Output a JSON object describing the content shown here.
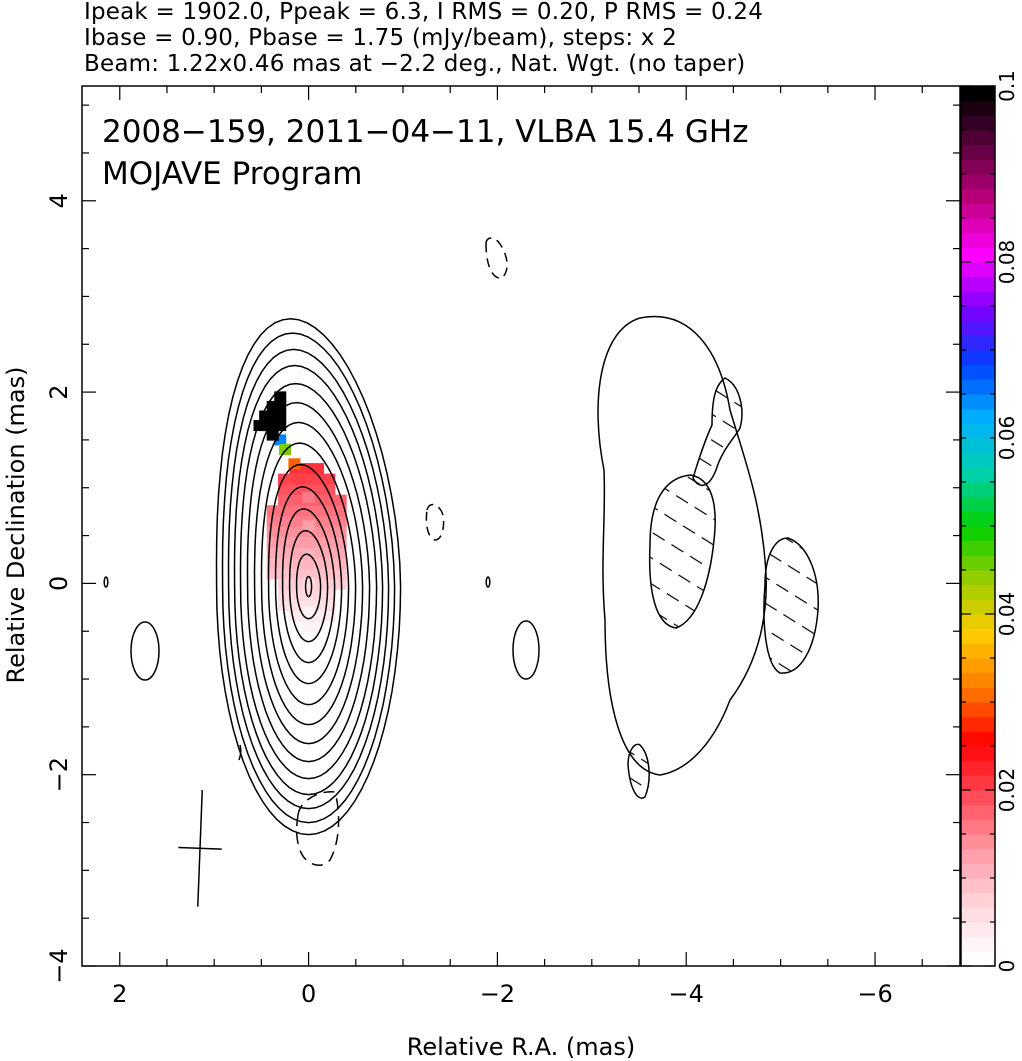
{
  "header": {
    "line1": "Ipeak = 1902.0, Ppeak = 6.3, I RMS = 0.20, P RMS = 0.24",
    "line2": "Ibase = 0.90, Pbase = 1.75 (mJy/beam), steps: x 2",
    "line3": "Beam: 1.22x0.46 mas at −2.2 deg., Nat. Wgt. (no taper)"
  },
  "chart_data": {
    "type": "contour",
    "title": "2008−159, 2011−04−11, VLBA 15.4 GHz",
    "subtitle": "MOJAVE Program",
    "xlabel": "Relative R.A. (mas)",
    "ylabel": "Relative Declination (mas)",
    "xlim": [
      2.4,
      -6.9
    ],
    "ylim": [
      -4,
      5.2
    ],
    "x_ticks": [
      2,
      0,
      -2,
      -4,
      -6
    ],
    "x_tick_labels": [
      "2",
      "0",
      "−2",
      "−4",
      "−6"
    ],
    "y_ticks": [
      4,
      2,
      0,
      -2,
      -4
    ],
    "y_tick_labels": [
      "4",
      "2",
      "0",
      "−2",
      "−4"
    ],
    "colorbar": {
      "min": 0,
      "max": 0.1,
      "ticks": [
        0,
        0.02,
        0.04,
        0.06,
        0.08,
        0.1
      ],
      "tick_labels": [
        "0",
        "0.02",
        "0.04",
        "0.06",
        "0.08",
        "0.1"
      ],
      "colors": [
        "#ffffff",
        "#ffd6dc",
        "#ff9aa5",
        "#ff4d5a",
        "#ff0000",
        "#ff7a00",
        "#ffcc00",
        "#9acd00",
        "#00d000",
        "#00d0b0",
        "#00b0ff",
        "#0040ff",
        "#7a00ff",
        "#ff00ff",
        "#c00080",
        "#600040",
        "#000000"
      ]
    },
    "beam": {
      "major_mas": 1.22,
      "minor_mas": 0.46,
      "pa_deg": -2.2,
      "center": [
        1.15,
        -2.77
      ]
    },
    "contours_total_intensity": {
      "peak_mJy_per_beam": 1902.0,
      "base_mJy_per_beam": 0.9,
      "step_factor": 2,
      "core_center": [
        0.0,
        0.05
      ]
    },
    "fractional_polarization_pixels": [
      {
        "ra": 0.4,
        "dec": 1.7,
        "value": 0.1
      },
      {
        "ra": 0.3,
        "dec": 1.5,
        "value": 0.065
      },
      {
        "ra": 0.25,
        "dec": 1.4,
        "value": 0.045
      },
      {
        "ra": 0.15,
        "dec": 1.25,
        "value": 0.03
      },
      {
        "ra": 0.1,
        "dec": 1.1,
        "value": 0.02
      },
      {
        "ra": 0.0,
        "dec": 0.9,
        "value": 0.015
      },
      {
        "ra": 0.0,
        "dec": 0.6,
        "value": 0.012
      },
      {
        "ra": 0.0,
        "dec": 0.3,
        "value": 0.01
      },
      {
        "ra": 0.0,
        "dec": 0.0,
        "value": 0.005
      },
      {
        "ra": 0.0,
        "dec": -0.3,
        "value": 0.002
      }
    ]
  }
}
